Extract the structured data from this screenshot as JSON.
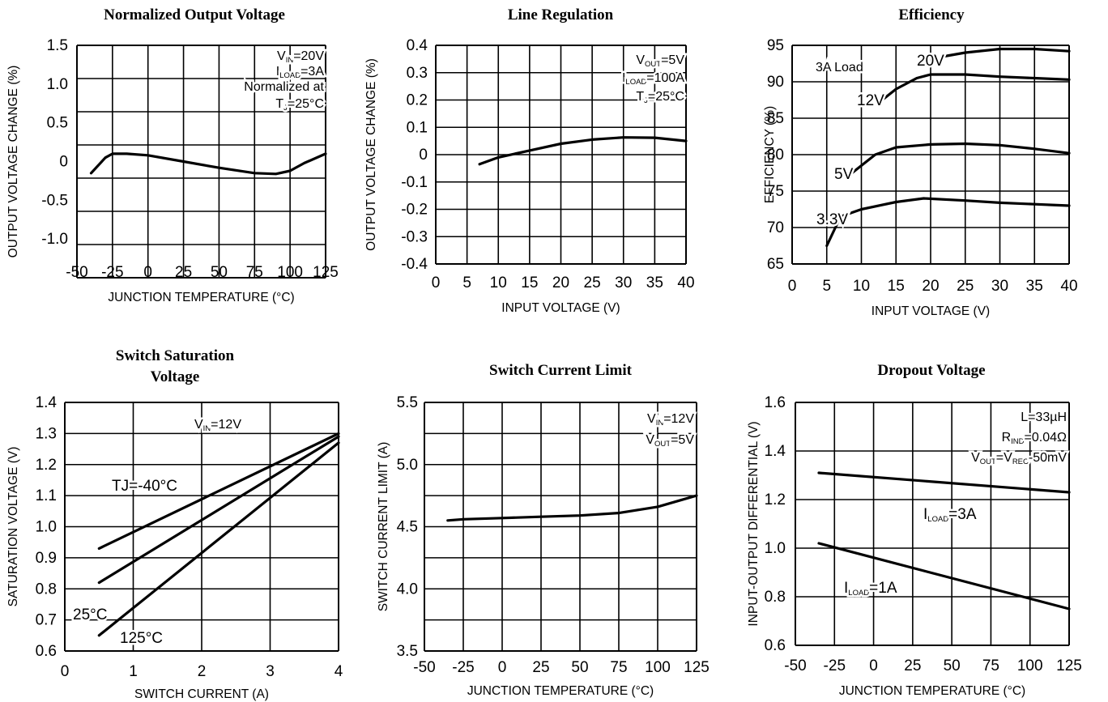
{
  "chart_data": [
    {
      "type": "line",
      "title": "Normalized Output Voltage",
      "xlabel": "JUNCTION TEMPERATURE (°C)",
      "ylabel": "OUTPUT VOLTAGE CHANGE (%)",
      "xlim": [
        -50,
        125
      ],
      "ylim": [
        -1.5,
        1.5
      ],
      "x_ticks": [
        -50,
        -25,
        0,
        25,
        50,
        75,
        100,
        125
      ],
      "y_ticks": [
        1.5,
        1.0,
        0.5,
        0,
        -0.5,
        -1.0
      ],
      "y_tick_labels": [
        "1.5",
        "1.0",
        "0.5",
        "0",
        "-0.5",
        "-1.0"
      ],
      "grid": true,
      "annotations": [
        {
          "text": "VIN=20V",
          "base": "V",
          "sub": "IN",
          "rest": "=20V"
        },
        {
          "text": "ILOAD=3A",
          "base": "I",
          "sub": "LOAD",
          "rest": "=3A"
        },
        {
          "text": "Normalized at",
          "base": "Normalized at",
          "sub": "",
          "rest": ""
        },
        {
          "text": "TJ=25°C",
          "base": "T",
          "sub": "J",
          "rest": "=25°C"
        }
      ],
      "series": [
        {
          "label": "",
          "x": [
            -40,
            -30,
            -25,
            -15,
            0,
            25,
            50,
            75,
            90,
            100,
            110,
            125
          ],
          "y": [
            -0.15,
            0.05,
            0.1,
            0.1,
            0.08,
            0.0,
            -0.08,
            -0.15,
            -0.16,
            -0.12,
            -0.02,
            0.1
          ]
        }
      ]
    },
    {
      "type": "line",
      "title": "Line Regulation",
      "xlabel": "INPUT VOLTAGE (V)",
      "ylabel": "OUTPUT VOLTAGE CHANGE (%)",
      "xlim": [
        0,
        40
      ],
      "ylim": [
        -0.4,
        0.4
      ],
      "x_ticks": [
        0,
        5,
        10,
        15,
        20,
        25,
        30,
        35,
        40
      ],
      "y_ticks": [
        0.4,
        0.3,
        0.2,
        0.1,
        0,
        -0.1,
        -0.2,
        -0.3,
        -0.4
      ],
      "y_tick_labels": [
        "0.4",
        "0.3",
        "0.2",
        "0.1",
        "0",
        "-0.1",
        "-0.2",
        "-0.3",
        "-0.4"
      ],
      "grid": true,
      "annotations": [
        {
          "text": "VOUT=5V",
          "base": "V",
          "sub": "OUT",
          "rest": "=5V"
        },
        {
          "text": "ILOAD=100A",
          "base": "I",
          "sub": "LOAD",
          "rest": "=100A"
        },
        {
          "text": "TJ=25°C",
          "base": "T",
          "sub": "J",
          "rest": "=25°C"
        }
      ],
      "series": [
        {
          "label": "",
          "x": [
            7,
            10,
            15,
            20,
            25,
            30,
            35,
            40
          ],
          "y": [
            -0.035,
            -0.01,
            0.015,
            0.04,
            0.055,
            0.063,
            0.062,
            0.05
          ]
        }
      ]
    },
    {
      "type": "line",
      "title": "Efficiency",
      "xlabel": "INPUT VOLTAGE (V)",
      "ylabel": "EFFICIENCY (%)",
      "xlim": [
        0,
        40
      ],
      "ylim": [
        65,
        95
      ],
      "x_ticks": [
        0,
        5,
        10,
        15,
        20,
        25,
        30,
        35,
        40
      ],
      "y_ticks": [
        95,
        90,
        85,
        80,
        75,
        70,
        65
      ],
      "y_tick_labels": [
        "95",
        "90",
        "85",
        "80",
        "75",
        "70",
        "65"
      ],
      "grid": true,
      "annotations": [
        {
          "text": "3A Load",
          "base": "3A  Load",
          "sub": "",
          "rest": ""
        }
      ],
      "series": [
        {
          "label": "20V",
          "x": [
            22,
            25,
            30,
            35,
            40
          ],
          "y": [
            93.5,
            94.0,
            94.5,
            94.5,
            94.2
          ]
        },
        {
          "label": "12V",
          "x": [
            13,
            15,
            18,
            20,
            25,
            30,
            35,
            40
          ],
          "y": [
            87.5,
            89.0,
            90.5,
            91.0,
            91.0,
            90.7,
            90.5,
            90.3
          ]
        },
        {
          "label": "5V",
          "x": [
            8,
            10,
            12,
            15,
            20,
            25,
            30,
            35,
            40
          ],
          "y": [
            77,
            78.5,
            80.0,
            81.0,
            81.4,
            81.5,
            81.3,
            80.8,
            80.2
          ]
        },
        {
          "label": "3.3V",
          "x": [
            5,
            7,
            10,
            15,
            19,
            25,
            30,
            35,
            40
          ],
          "y": [
            67.5,
            71.5,
            72.5,
            73.5,
            74.0,
            73.7,
            73.4,
            73.2,
            73.0
          ]
        }
      ]
    },
    {
      "type": "line",
      "title": "Switch Saturation Voltage",
      "title_lines": [
        "Switch Saturation",
        "Voltage"
      ],
      "xlabel": "SWITCH  CURRENT (A)",
      "ylabel": "SATURATION VOLTAGE (V)",
      "xlim": [
        0,
        4
      ],
      "ylim": [
        0.6,
        1.4
      ],
      "x_ticks": [
        0,
        1,
        2,
        3,
        4
      ],
      "y_ticks": [
        1.4,
        1.3,
        1.2,
        1.1,
        1.0,
        0.9,
        0.8,
        0.7,
        0.6
      ],
      "y_tick_labels": [
        "1.4",
        "1.3",
        "1.2",
        "1.1",
        "1.0",
        "0.9",
        "0.8",
        "0.7",
        "0.6"
      ],
      "grid": true,
      "annotations": [
        {
          "text": "VIN=12V",
          "base": "V",
          "sub": "IN",
          "rest": "=12V"
        }
      ],
      "series": [
        {
          "label": "TJ=-40°C",
          "x": [
            0.5,
            4.0
          ],
          "y": [
            0.93,
            1.3
          ]
        },
        {
          "label": "25°C",
          "x": [
            0.5,
            4.0
          ],
          "y": [
            0.82,
            1.29
          ]
        },
        {
          "label": "125°C",
          "x": [
            0.5,
            4.0
          ],
          "y": [
            0.65,
            1.27
          ]
        }
      ]
    },
    {
      "type": "line",
      "title": "Switch Current Limit",
      "xlabel": "JUNCTION TEMPERATURE (°C)",
      "ylabel": "SWITCH  CURRENT LIMIT (A)",
      "xlim": [
        -50,
        125
      ],
      "ylim": [
        3.5,
        5.5
      ],
      "x_ticks": [
        -50,
        -25,
        0,
        25,
        50,
        75,
        100,
        125
      ],
      "y_ticks": [
        5.5,
        5.0,
        4.5,
        4.0,
        3.5
      ],
      "y_tick_labels": [
        "5.5",
        "5.0",
        "4.5",
        "4.0",
        "3.5"
      ],
      "grid": true,
      "annotations": [
        {
          "text": "VIN=12V",
          "base": "V",
          "sub": "IN",
          "rest": "=12V"
        },
        {
          "text": "VOUT=5V",
          "base": "V",
          "sub": "OUT",
          "rest": "=5V"
        }
      ],
      "series": [
        {
          "label": "",
          "x": [
            -35,
            -25,
            0,
            25,
            50,
            75,
            100,
            125
          ],
          "y": [
            4.55,
            4.56,
            4.57,
            4.58,
            4.59,
            4.61,
            4.66,
            4.75
          ]
        }
      ]
    },
    {
      "type": "line",
      "title": "Dropout Voltage",
      "xlabel": "JUNCTION TEMPERATURE (°C)",
      "ylabel": "INPUT-OUTPUT DIFFERENTIAL (V)",
      "xlim": [
        -50,
        125
      ],
      "ylim": [
        0.6,
        1.6
      ],
      "x_ticks": [
        -50,
        -25,
        0,
        25,
        50,
        75,
        100,
        125
      ],
      "y_ticks": [
        1.6,
        1.4,
        1.2,
        1.0,
        0.8,
        0.6
      ],
      "y_tick_labels": [
        "1.6",
        "1.4",
        "1.2",
        "1.0",
        "0.8",
        "0.6"
      ],
      "grid": true,
      "annotations": [
        {
          "text": "L=33µH",
          "base": "L=33µH",
          "sub": "",
          "rest": ""
        },
        {
          "text": "RIND=0.04Ω",
          "base": "R",
          "sub": "IND",
          "rest": "=0.04Ω"
        },
        {
          "text": "VOUT=VREC-50mV",
          "base": "V",
          "sub": "OUT",
          "rest": "=V",
          "sub2": "REC",
          "rest2": "-50mV"
        }
      ],
      "series": [
        {
          "label": "ILOAD=3A",
          "label_base": "I",
          "label_sub": "LOAD",
          "label_rest": "=3A",
          "x": [
            -35,
            125
          ],
          "y": [
            1.31,
            1.23
          ]
        },
        {
          "label": "ILOAD=1A",
          "label_base": "I",
          "label_sub": "LOAD",
          "label_rest": "=1A",
          "x": [
            -35,
            125
          ],
          "y": [
            1.02,
            0.75
          ]
        }
      ]
    }
  ]
}
